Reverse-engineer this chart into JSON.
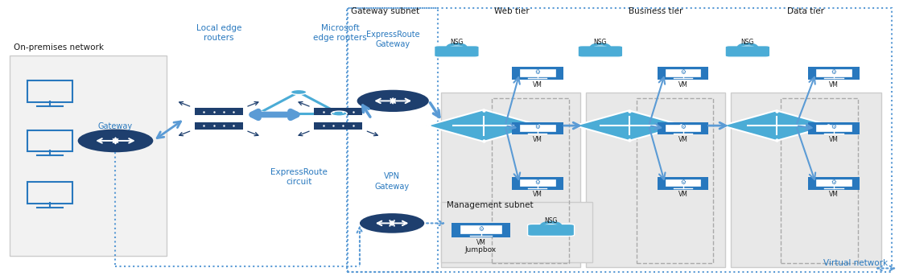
{
  "bg_color": "#ffffff",
  "gray_bg": "#f2f2f2",
  "gray_bg2": "#e8e8e8",
  "blue_dark": "#1e3f6e",
  "blue_mid": "#2878be",
  "blue_light": "#4bacd6",
  "blue_arrow": "#5b9bd5",
  "text_blue": "#2878be",
  "text_dark": "#1a1a1a",
  "labels": {
    "on_premises": "On-premises network",
    "gateway": "Gateway",
    "local_edge": "Local edge\nrouters",
    "expressroute_circuit": "ExpressRoute\ncircuit",
    "ms_edge": "Microsoft\nedge routers",
    "gateway_subnet": "Gateway subnet",
    "er_gateway": "ExpressRoute\nGateway",
    "vpn_gateway": "VPN\nGateway",
    "web_tier": "Web tier",
    "business_tier": "Business tier",
    "data_tier": "Data tier",
    "mgmt_subnet": "Management subnet",
    "jumpbox": "Jumpbox",
    "virtual_network": "Virtual network"
  }
}
